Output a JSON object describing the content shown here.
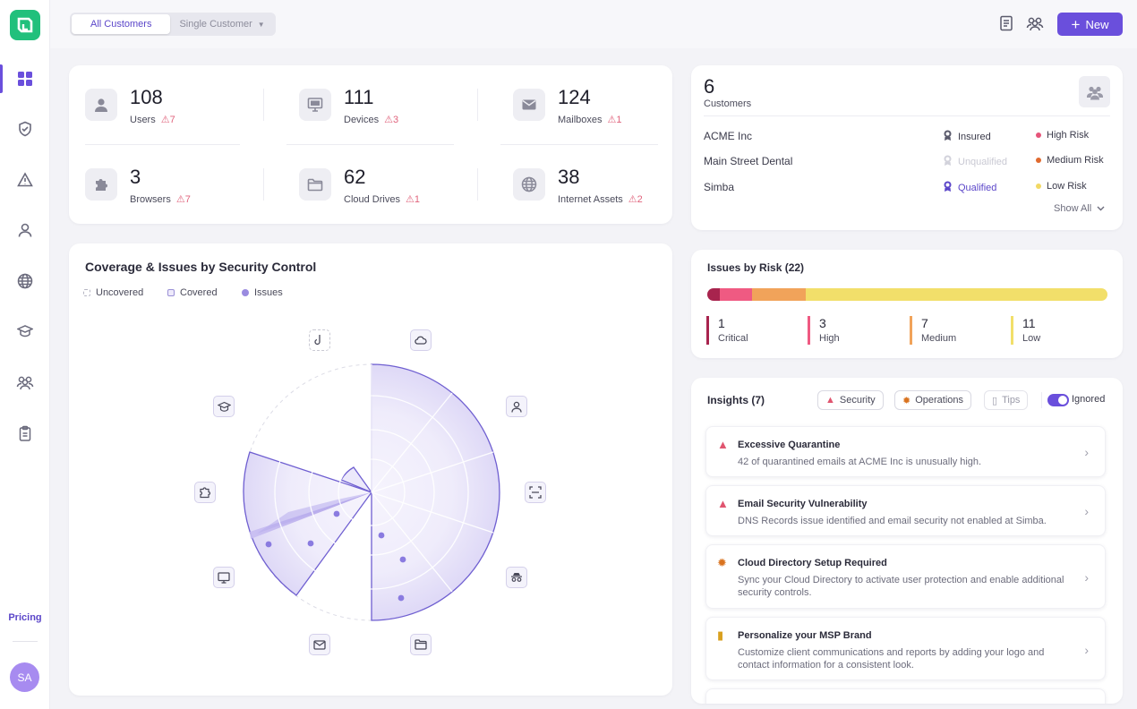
{
  "sidebar": {
    "nav": [
      "dashboard",
      "security",
      "alerts",
      "users",
      "internet",
      "training",
      "customers",
      "reports"
    ],
    "pricing_label": "Pricing",
    "avatar_initials": "SA"
  },
  "topbar": {
    "tab_all": "All Customers",
    "tab_single": "Single Customer",
    "new_label": "New"
  },
  "stats": [
    {
      "value": "108",
      "label": "Users",
      "warn": "7",
      "icon": "user-icon"
    },
    {
      "value": "111",
      "label": "Devices",
      "warn": "3",
      "icon": "monitor-icon"
    },
    {
      "value": "124",
      "label": "Mailboxes",
      "warn": "1",
      "icon": "mail-icon"
    },
    {
      "value": "3",
      "label": "Browsers",
      "warn": "7",
      "icon": "puzzle-icon"
    },
    {
      "value": "62",
      "label": "Cloud Drives",
      "warn": "1",
      "icon": "folder-icon"
    },
    {
      "value": "38",
      "label": "Internet Assets",
      "warn": "2",
      "icon": "globe-icon"
    }
  ],
  "customers": {
    "count": "6",
    "label": "Customers",
    "rows": [
      {
        "name": "ACME Inc",
        "status": "Insured",
        "risk": "High Risk",
        "risk_color": "#e6557a"
      },
      {
        "name": "Main Street Dental",
        "status": "Unqualified",
        "risk": "Medium Risk",
        "risk_color": "#e06a2f"
      },
      {
        "name": "Simba",
        "status": "Qualified",
        "risk": "Low Risk",
        "risk_color": "#f2d964"
      }
    ],
    "show_all": "Show All"
  },
  "issues_by_risk": {
    "title": "Issues by Risk (22)",
    "segments": [
      {
        "value": "1",
        "label": "Critical",
        "color": "#a8244e"
      },
      {
        "value": "3",
        "label": "High",
        "color": "#ef5a82"
      },
      {
        "value": "7",
        "label": "Medium",
        "color": "#f1a35a"
      },
      {
        "value": "11",
        "label": "Low",
        "color": "#f2df6a"
      }
    ]
  },
  "coverage": {
    "title": "Coverage & Issues by Security Control",
    "legend": [
      "Uncovered",
      "Covered",
      "Issues"
    ],
    "controls": [
      "hook-icon",
      "cloud-icon",
      "user-icon",
      "scan-icon",
      "incognito-icon",
      "folder-icon",
      "mail-icon",
      "monitor-icon",
      "puzzle-icon",
      "graduation-cap-icon"
    ]
  },
  "insights": {
    "title": "Insights (7)",
    "filters": [
      "Security",
      "Operations",
      "Tips"
    ],
    "toggle_label": "Ignored",
    "items": [
      {
        "title": "Excessive Quarantine",
        "desc": "42 of quarantined emails at ACME Inc is unusually high.",
        "icon": "warning-icon",
        "color": "#e0556f"
      },
      {
        "title": "Email Security Vulnerability",
        "desc": "DNS Records issue identified and email security not enabled at Simba.",
        "icon": "warning-icon",
        "color": "#e0556f"
      },
      {
        "title": "Cloud Directory Setup Required",
        "desc": "Sync your Cloud Directory to activate user protection and enable additional security controls.",
        "icon": "gear-icon",
        "color": "#d9731f"
      },
      {
        "title": "Personalize your MSP Brand",
        "desc": "Customize client communications and reports by adding your logo and contact information for a consistent look.",
        "icon": "clipboard-icon",
        "color": "#d9a01f"
      }
    ]
  }
}
